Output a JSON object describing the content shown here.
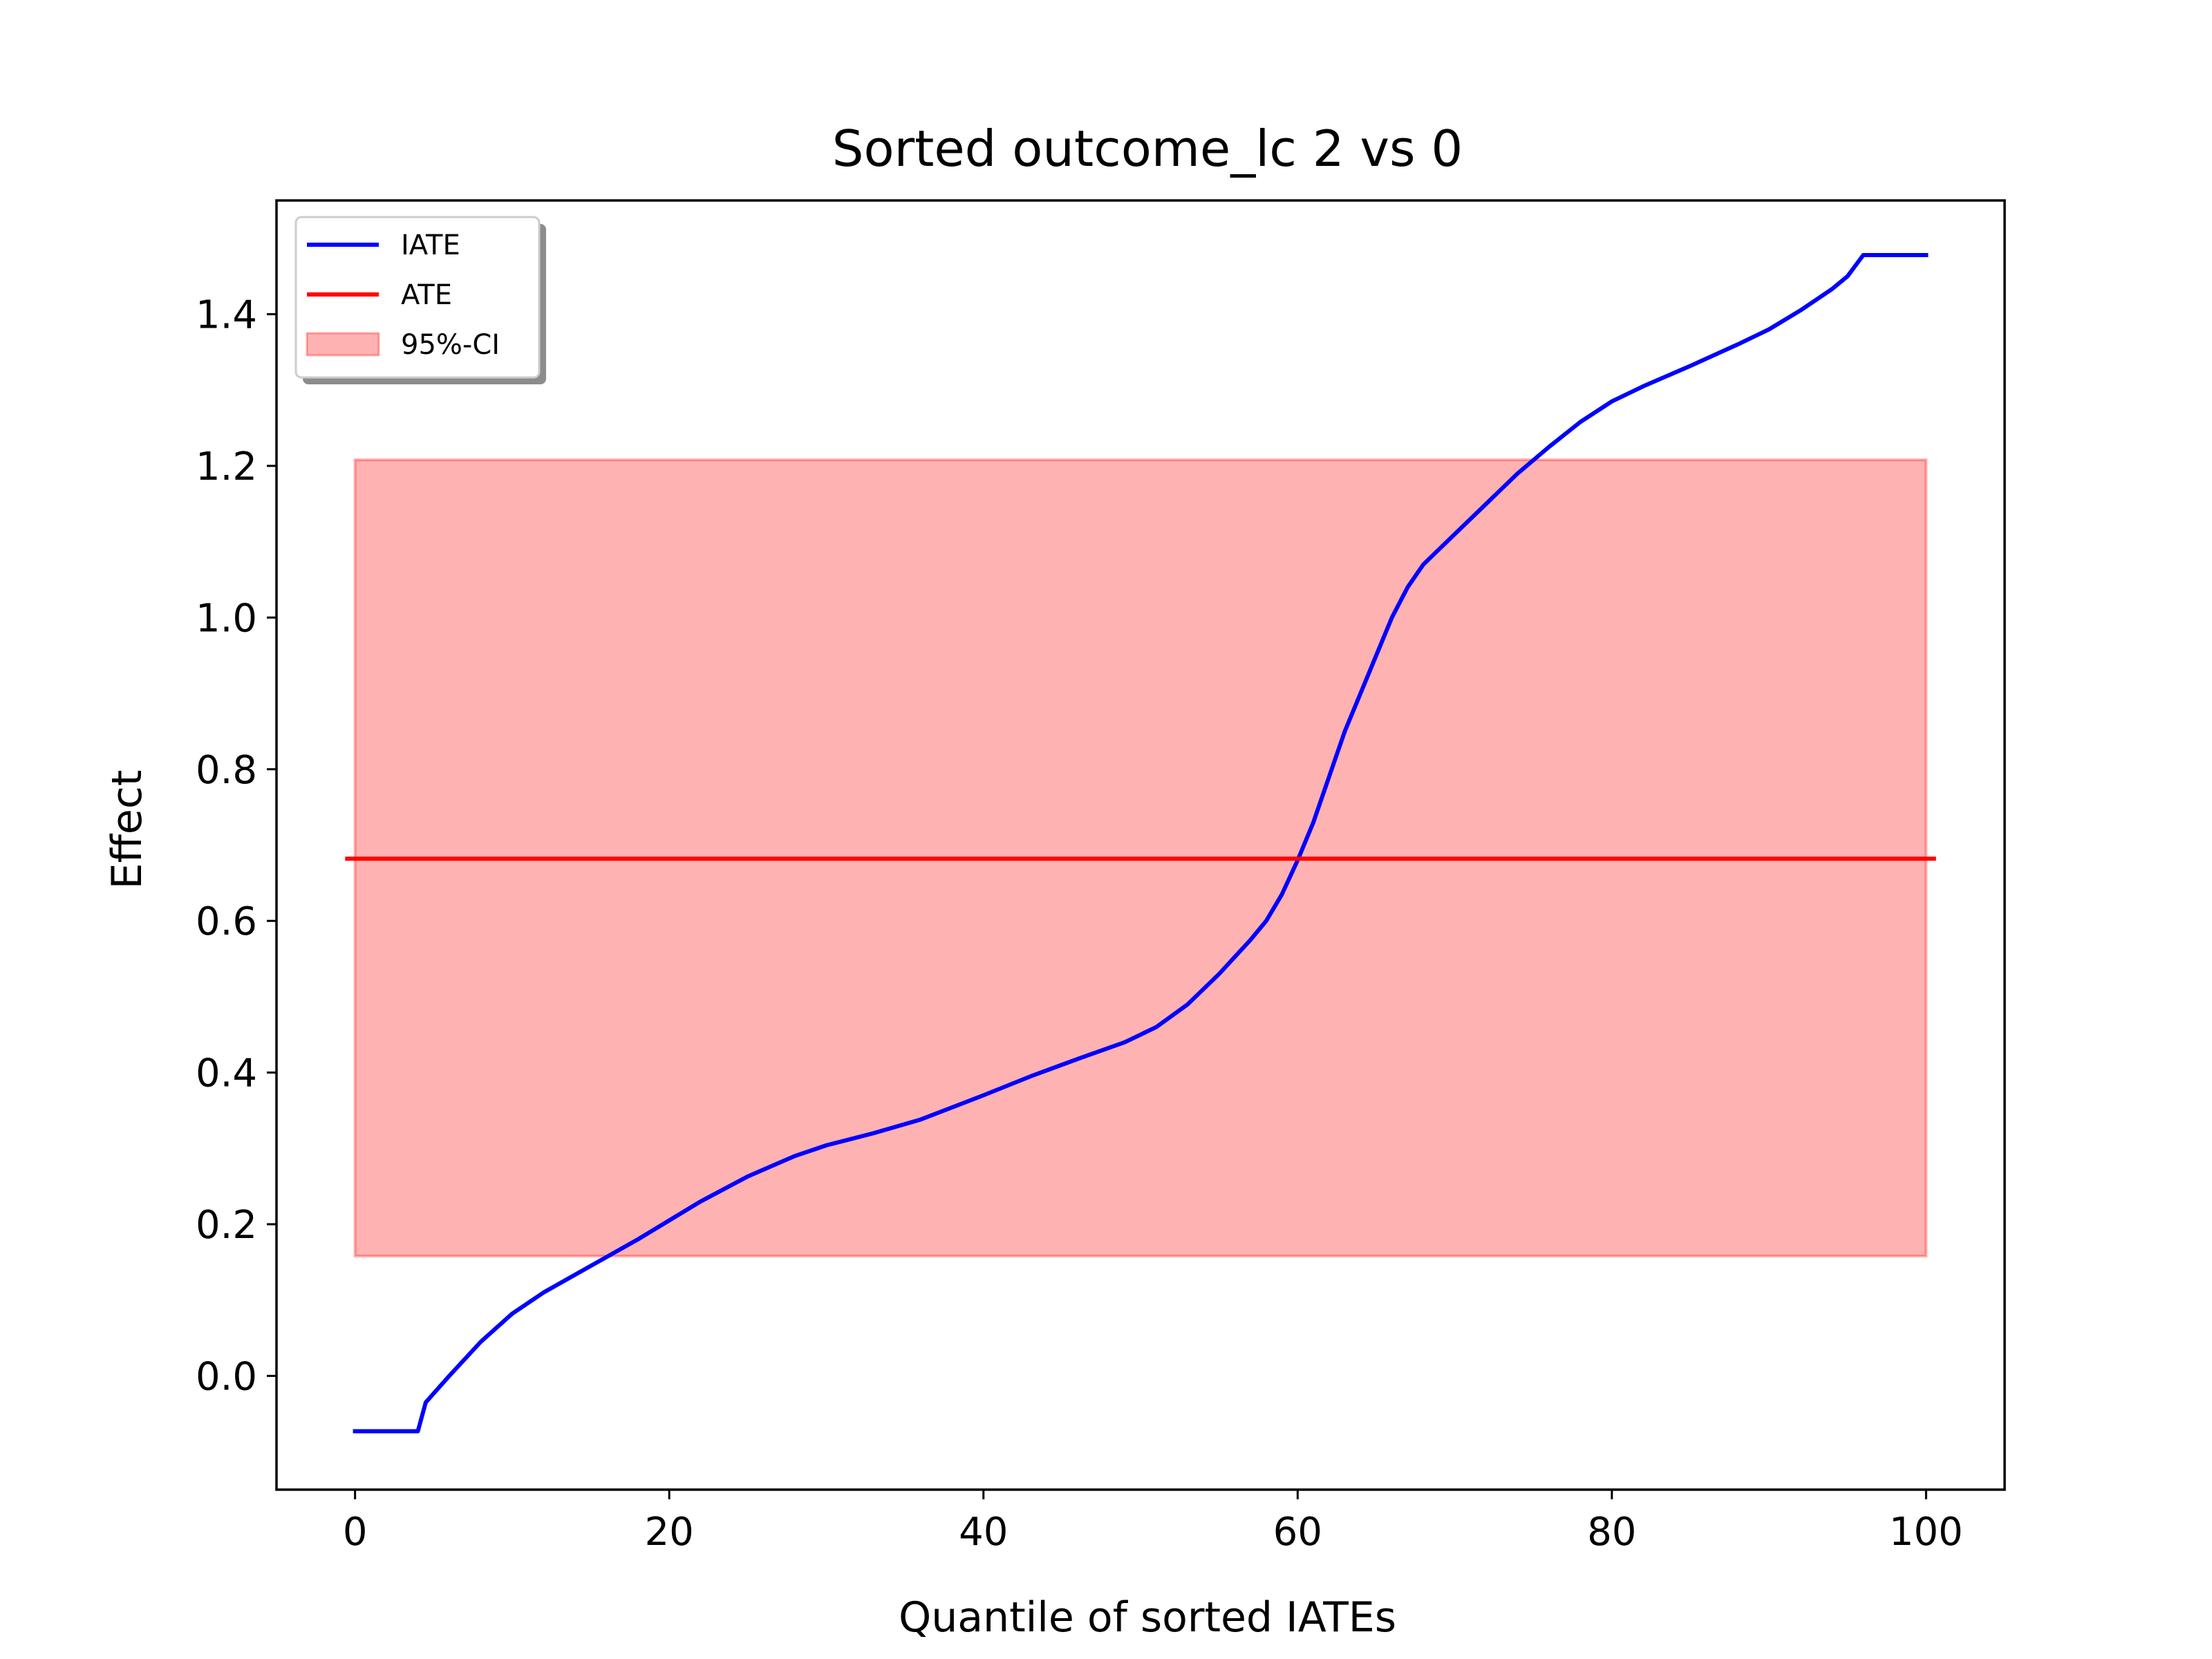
{
  "chart_data": {
    "type": "line",
    "title": "Sorted outcome_lc 2 vs 0",
    "xlabel": "Quantile of sorted IATEs",
    "ylabel": "Effect",
    "xlim": [
      -5,
      105
    ],
    "ylim": [
      -0.15,
      1.55
    ],
    "xticks": [
      0,
      20,
      40,
      60,
      80,
      100
    ],
    "yticks": [
      0.0,
      0.2,
      0.4,
      0.6,
      0.8,
      1.0,
      1.2,
      1.4
    ],
    "xtick_labels": [
      "0",
      "20",
      "40",
      "60",
      "80",
      "100"
    ],
    "ytick_labels": [
      "0.0",
      "0.2",
      "0.4",
      "0.6",
      "0.8",
      "1.0",
      "1.2",
      "1.4"
    ],
    "grid": false,
    "legend_position": "top-left",
    "legend": [
      {
        "label": "IATE",
        "kind": "line",
        "color": "#0000ff"
      },
      {
        "label": "ATE",
        "kind": "line",
        "color": "#ff0000"
      },
      {
        "label": "95%-CI",
        "kind": "patch",
        "color": "#ff0000"
      }
    ],
    "series": [
      {
        "name": "IATE",
        "color": "#0000ff",
        "x": [
          0,
          4,
          4.5,
          6,
          8,
          10,
          12,
          15,
          18,
          20,
          22,
          25,
          28,
          30,
          33,
          36,
          40,
          43,
          46,
          49,
          51,
          53,
          55,
          57,
          58,
          59,
          60,
          61,
          62,
          63,
          64,
          65,
          66,
          67,
          68,
          69,
          70,
          72,
          74,
          76,
          78,
          80,
          82,
          85,
          88,
          90,
          92,
          94,
          95,
          96,
          100
        ],
        "y": [
          -0.073,
          -0.073,
          -0.035,
          0.0,
          0.045,
          0.082,
          0.11,
          0.145,
          0.18,
          0.205,
          0.23,
          0.263,
          0.29,
          0.304,
          0.32,
          0.338,
          0.37,
          0.395,
          0.418,
          0.44,
          0.46,
          0.49,
          0.53,
          0.575,
          0.6,
          0.635,
          0.68,
          0.73,
          0.79,
          0.85,
          0.9,
          0.95,
          1.0,
          1.04,
          1.07,
          1.09,
          1.11,
          1.15,
          1.19,
          1.225,
          1.258,
          1.285,
          1.305,
          1.332,
          1.36,
          1.38,
          1.405,
          1.433,
          1.45,
          1.478,
          1.478
        ]
      },
      {
        "name": "ATE",
        "color": "#ff0000",
        "x": [
          -0.5,
          100.5
        ],
        "y": [
          0.682,
          0.682
        ]
      }
    ],
    "ci_band": {
      "name": "95%-CI",
      "color": "#ff0000",
      "x": [
        0,
        100
      ],
      "lower": 0.158,
      "upper": 1.208
    }
  }
}
